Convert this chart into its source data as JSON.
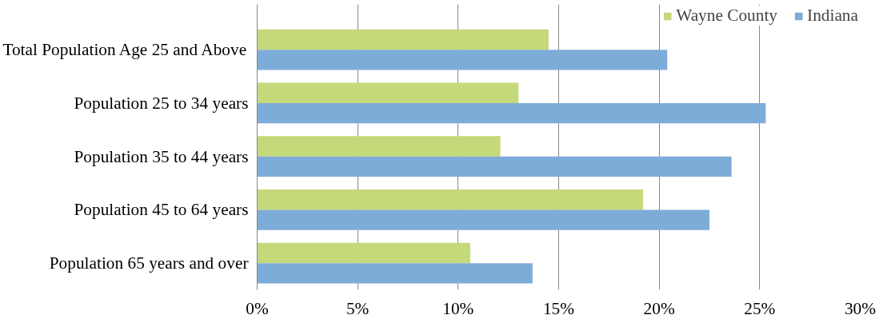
{
  "chart_data": {
    "type": "bar",
    "orientation": "horizontal",
    "categories": [
      "Total Population Age 25 and Above",
      "Population 25 to 34 years",
      "Population 35 to 44 years",
      "Population 45 to 64 years",
      "Population 65 years and over"
    ],
    "series": [
      {
        "name": "Wayne County",
        "color": "#c4d979",
        "values": [
          14.5,
          13.0,
          12.1,
          19.2,
          10.6
        ]
      },
      {
        "name": "Indiana",
        "color": "#7eacd9",
        "values": [
          20.4,
          25.3,
          23.6,
          22.5,
          13.7
        ]
      }
    ],
    "xlim": [
      0,
      30
    ],
    "xticks": [
      {
        "value": 0,
        "label": "0%"
      },
      {
        "value": 5,
        "label": "5%"
      },
      {
        "value": 10,
        "label": "10%"
      },
      {
        "value": 15,
        "label": "15%"
      },
      {
        "value": 20,
        "label": "20%"
      },
      {
        "value": 25,
        "label": "25%"
      },
      {
        "value": 30,
        "label": "30%"
      }
    ],
    "grid": "x",
    "legend": "top right"
  }
}
